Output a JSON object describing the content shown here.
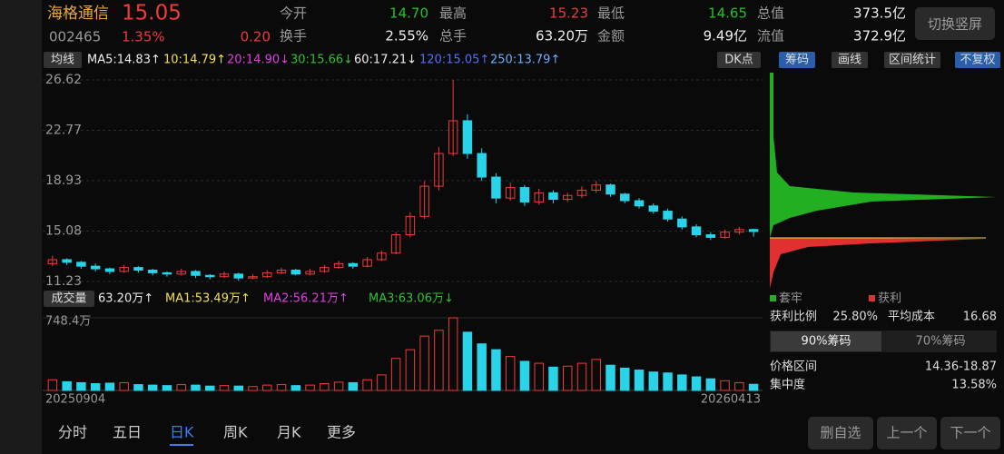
{
  "header": {
    "name": "海格通信",
    "price": "15.05",
    "code": "002465",
    "change_pct": "1.35%",
    "change": "0.20",
    "fields": [
      [
        "今开",
        "14.70"
      ],
      [
        "最高",
        "15.23"
      ],
      [
        "最低",
        "14.65"
      ],
      [
        "总值",
        "373.5亿"
      ],
      [
        "换手",
        "2.55%"
      ],
      [
        "总手",
        "63.20万"
      ],
      [
        "金额",
        "9.49亿"
      ],
      [
        "流值",
        "372.9亿"
      ]
    ],
    "button": "切换竖屏"
  },
  "toolbar": {
    "ma_button": "均线",
    "ma": [
      "MA5:14.83↑",
      "10:14.79↑",
      "20:14.90↓",
      "30:15.66↓",
      "60:17.21↓",
      "120:15.05↑",
      "250:13.79↑"
    ],
    "dk": "DK点",
    "tabs": [
      "筹码",
      "画线",
      "区间统计",
      "不复权"
    ]
  },
  "chart_data": {
    "type": "candlestick",
    "ylim": [
      10.68,
      27.17
    ],
    "yticks": [
      11.23,
      15.08,
      18.93,
      22.77,
      26.62
    ],
    "candles": [
      [
        12.6,
        13.2,
        12.4,
        12.9
      ],
      [
        12.9,
        13.0,
        12.5,
        12.7
      ],
      [
        12.7,
        12.8,
        12.2,
        12.4
      ],
      [
        12.4,
        12.6,
        12.0,
        12.2
      ],
      [
        12.2,
        12.3,
        11.8,
        12.0
      ],
      [
        12.0,
        12.5,
        11.9,
        12.3
      ],
      [
        12.3,
        12.4,
        11.9,
        12.1
      ],
      [
        12.1,
        12.2,
        11.7,
        11.9
      ],
      [
        11.9,
        12.0,
        11.6,
        11.8
      ],
      [
        11.8,
        12.2,
        11.7,
        12.0
      ],
      [
        12.0,
        12.1,
        11.5,
        11.7
      ],
      [
        11.7,
        11.8,
        11.4,
        11.6
      ],
      [
        11.6,
        12.0,
        11.5,
        11.8
      ],
      [
        11.8,
        11.9,
        11.3,
        11.5
      ],
      [
        11.5,
        11.8,
        11.4,
        11.6
      ],
      [
        11.6,
        12.1,
        11.5,
        11.9
      ],
      [
        11.9,
        12.3,
        11.8,
        12.1
      ],
      [
        12.1,
        12.2,
        11.7,
        11.8
      ],
      [
        11.8,
        12.2,
        11.7,
        12.0
      ],
      [
        12.0,
        12.5,
        11.9,
        12.3
      ],
      [
        12.3,
        12.8,
        12.2,
        12.6
      ],
      [
        12.6,
        12.7,
        12.2,
        12.4
      ],
      [
        12.4,
        13.1,
        12.3,
        12.9
      ],
      [
        12.9,
        13.6,
        12.8,
        13.4
      ],
      [
        13.4,
        15.0,
        13.3,
        14.8
      ],
      [
        14.8,
        16.5,
        14.6,
        16.2
      ],
      [
        16.2,
        18.9,
        16.0,
        18.5
      ],
      [
        18.5,
        21.5,
        18.2,
        21.0
      ],
      [
        21.0,
        26.62,
        20.8,
        23.5
      ],
      [
        23.5,
        24.0,
        20.6,
        21.0
      ],
      [
        21.0,
        21.4,
        18.9,
        19.2
      ],
      [
        19.2,
        19.5,
        17.2,
        17.6
      ],
      [
        17.6,
        18.8,
        17.4,
        18.4
      ],
      [
        18.4,
        18.6,
        17.0,
        17.3
      ],
      [
        17.3,
        18.3,
        17.1,
        18.0
      ],
      [
        18.0,
        18.2,
        17.2,
        17.5
      ],
      [
        17.5,
        18.0,
        17.3,
        17.8
      ],
      [
        17.8,
        18.5,
        17.6,
        18.2
      ],
      [
        18.2,
        18.9,
        18.0,
        18.6
      ],
      [
        18.6,
        18.7,
        17.7,
        17.9
      ],
      [
        17.9,
        18.0,
        17.2,
        17.4
      ],
      [
        17.4,
        17.6,
        16.8,
        17.0
      ],
      [
        17.0,
        17.2,
        16.4,
        16.6
      ],
      [
        16.6,
        16.8,
        15.8,
        16.0
      ],
      [
        16.0,
        16.2,
        15.2,
        15.4
      ],
      [
        15.4,
        15.6,
        14.6,
        14.8
      ],
      [
        14.8,
        15.0,
        14.4,
        14.6
      ],
      [
        14.6,
        15.2,
        14.5,
        15.0
      ],
      [
        15.0,
        15.4,
        14.8,
        15.2
      ],
      [
        15.2,
        15.23,
        14.65,
        15.05
      ]
    ],
    "up_color": "#f03a3a",
    "down_color": "#2ad4e8",
    "volume_label": "成交量",
    "volume_ma": [
      "63.20万↑",
      "MA1:53.49万↑",
      "MA2:56.21万↑",
      "MA3:63.06万↓"
    ],
    "vlim": [
      0,
      748.4
    ],
    "vticks": [
      {
        "value": 748.4,
        "label": "748.4万"
      }
    ],
    "volume": [
      110,
      90,
      80,
      70,
      75,
      80,
      60,
      55,
      50,
      60,
      55,
      45,
      50,
      45,
      40,
      55,
      60,
      50,
      55,
      70,
      85,
      80,
      110,
      160,
      330,
      420,
      560,
      620,
      748.4,
      600,
      480,
      420,
      350,
      300,
      280,
      240,
      250,
      280,
      320,
      260,
      230,
      210,
      190,
      180,
      160,
      140,
      120,
      100,
      80,
      63.2
    ],
    "date_start": "20250904",
    "date_end": "20260413"
  },
  "chips": {
    "legend": [
      "套牢",
      "获利"
    ],
    "ratio_label": "获利比例",
    "ratio": "25.80%",
    "cost_label": "平均成本",
    "cost": "16.68",
    "tabs": [
      "90%筹码",
      "70%筹码"
    ],
    "range_label": "价格区间",
    "range": "14.36-18.87",
    "conc_label": "集中度",
    "conc": "13.58%"
  },
  "nav": {
    "tabs": [
      "分时",
      "五日",
      "日K",
      "周K",
      "月K",
      "更多"
    ],
    "buttons": [
      "删自选",
      "上一个",
      "下一个"
    ]
  }
}
